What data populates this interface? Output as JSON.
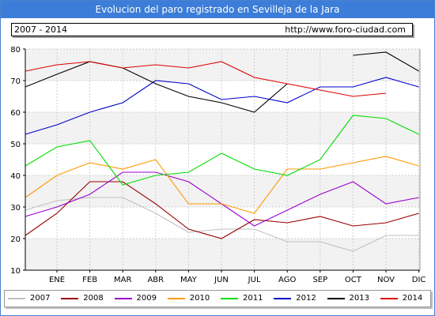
{
  "title": "Evolucion del paro registrado en Sevilleja de la Jara",
  "info": {
    "period": "2007 - 2014",
    "url": "http://www.foro-ciudad.com"
  },
  "chart_data": {
    "type": "line",
    "categories": [
      "ENE",
      "FEB",
      "MAR",
      "ABR",
      "MAY",
      "JUN",
      "JUL",
      "AGO",
      "SEP",
      "OCT",
      "NOV",
      "DIC"
    ],
    "ylim": [
      10,
      80
    ],
    "yticks": [
      10,
      20,
      30,
      40,
      50,
      60,
      70,
      80
    ],
    "grid": true,
    "legend_position": "bottom",
    "series": [
      {
        "name": "2007",
        "color": "#c0c0c0",
        "values": [
          32,
          33,
          33,
          28,
          22,
          23,
          23,
          19,
          19,
          16,
          21,
          21
        ]
      },
      {
        "name": "2008",
        "color": "#990000",
        "values": [
          28,
          38,
          38,
          31,
          23,
          20,
          26,
          25,
          27,
          24,
          25,
          28
        ]
      },
      {
        "name": "2009",
        "color": "#9900cc",
        "values": [
          30,
          34,
          41,
          41,
          38,
          31,
          24,
          29,
          34,
          38,
          31,
          33
        ]
      },
      {
        "name": "2010",
        "color": "#ff9900",
        "values": [
          40,
          44,
          42,
          45,
          31,
          31,
          28,
          42,
          42,
          44,
          46,
          43
        ]
      },
      {
        "name": "2011",
        "color": "#00dd00",
        "values": [
          49,
          51,
          37,
          40,
          41,
          47,
          42,
          40,
          45,
          59,
          58,
          53
        ]
      },
      {
        "name": "2012",
        "color": "#0000cc",
        "values": [
          56,
          60,
          63,
          70,
          69,
          64,
          65,
          63,
          68,
          68,
          71,
          68
        ]
      },
      {
        "name": "2013",
        "color": "#000000",
        "values": [
          72,
          76,
          74,
          69,
          65,
          63,
          60,
          69,
          null,
          78,
          79,
          73
        ]
      },
      {
        "name": "2014",
        "color": "#dd0000",
        "values": [
          75,
          76,
          74,
          75,
          74,
          76,
          71,
          69,
          67,
          65,
          66,
          null
        ]
      }
    ],
    "lead_in": {
      "2007": 29,
      "2008": 21,
      "2009": 27,
      "2010": 33,
      "2011": 43,
      "2012": 53,
      "2013": 68,
      "2014": 73
    }
  }
}
